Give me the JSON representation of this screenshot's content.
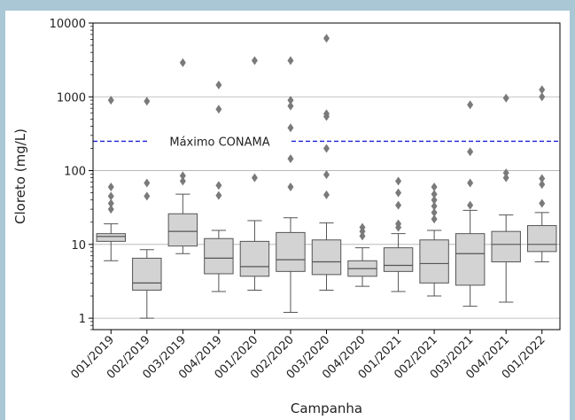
{
  "chart_data": {
    "type": "box",
    "ylabel": "Cloreto (mg/L)",
    "xlabel": "Campanha",
    "yscale": "log",
    "ylim": [
      0.7,
      10000
    ],
    "yticks": [
      1,
      10,
      100,
      1000,
      10000
    ],
    "grid": "horizontal",
    "categories": [
      "001/2019",
      "002/2019",
      "003/2019",
      "004/2019",
      "001/2020",
      "002/2020",
      "003/2020",
      "004/2020",
      "001/2021",
      "002/2021",
      "003/2021",
      "004/2021",
      "001/2022"
    ],
    "boxes": [
      {
        "whislo": 6.0,
        "q1": 11.0,
        "med": 12.8,
        "q3": 14.0,
        "whishi": 19.0,
        "fliers": [
          30,
          36,
          45,
          60,
          900
        ]
      },
      {
        "whislo": 1.0,
        "q1": 2.4,
        "med": 3.0,
        "q3": 6.5,
        "whishi": 8.5,
        "fliers": [
          45,
          68,
          870
        ]
      },
      {
        "whislo": 7.5,
        "q1": 9.5,
        "med": 15.0,
        "q3": 26.0,
        "whishi": 48.0,
        "fliers": [
          72,
          85,
          2900
        ]
      },
      {
        "whislo": 2.3,
        "q1": 4.0,
        "med": 6.5,
        "q3": 12.0,
        "whishi": 15.5,
        "fliers": [
          46,
          63,
          680,
          1450
        ]
      },
      {
        "whislo": 2.4,
        "q1": 3.7,
        "med": 5.0,
        "q3": 11.0,
        "whishi": 21.0,
        "fliers": [
          80,
          3100
        ]
      },
      {
        "whislo": 1.2,
        "q1": 4.3,
        "med": 6.2,
        "q3": 14.5,
        "whishi": 23.0,
        "fliers": [
          60,
          145,
          380,
          750,
          900,
          3100
        ]
      },
      {
        "whislo": 2.4,
        "q1": 3.9,
        "med": 5.8,
        "q3": 11.5,
        "whishi": 19.5,
        "fliers": [
          47,
          88,
          200,
          540,
          590,
          6200
        ]
      },
      {
        "whislo": 2.7,
        "q1": 3.7,
        "med": 4.7,
        "q3": 6.0,
        "whishi": 9.0,
        "fliers": [
          13,
          15,
          17
        ]
      },
      {
        "whislo": 2.3,
        "q1": 4.3,
        "med": 5.2,
        "q3": 9.0,
        "whishi": 14.0,
        "fliers": [
          17,
          19,
          34,
          50,
          72
        ]
      },
      {
        "whislo": 2.0,
        "q1": 3.0,
        "med": 5.5,
        "q3": 11.5,
        "whishi": 15.5,
        "fliers": [
          22,
          27,
          33,
          40,
          48,
          60
        ]
      },
      {
        "whislo": 1.45,
        "q1": 2.8,
        "med": 7.5,
        "q3": 14.0,
        "whishi": 29.0,
        "fliers": [
          34,
          68,
          180,
          780
        ]
      },
      {
        "whislo": 1.65,
        "q1": 5.8,
        "med": 10.0,
        "q3": 15.0,
        "whishi": 25.0,
        "fliers": [
          80,
          93,
          960
        ]
      },
      {
        "whislo": 5.8,
        "q1": 8.0,
        "med": 10.0,
        "q3": 18.0,
        "whishi": 27.0,
        "fliers": [
          36,
          65,
          78,
          1000,
          1250
        ]
      }
    ],
    "reference_line": {
      "value": 250,
      "label": "Máximo CONAMA",
      "color": "#1f1fd6",
      "style": "dashed"
    },
    "box_color": "#d3d3d3",
    "flier_color": "#7a7a7a"
  }
}
